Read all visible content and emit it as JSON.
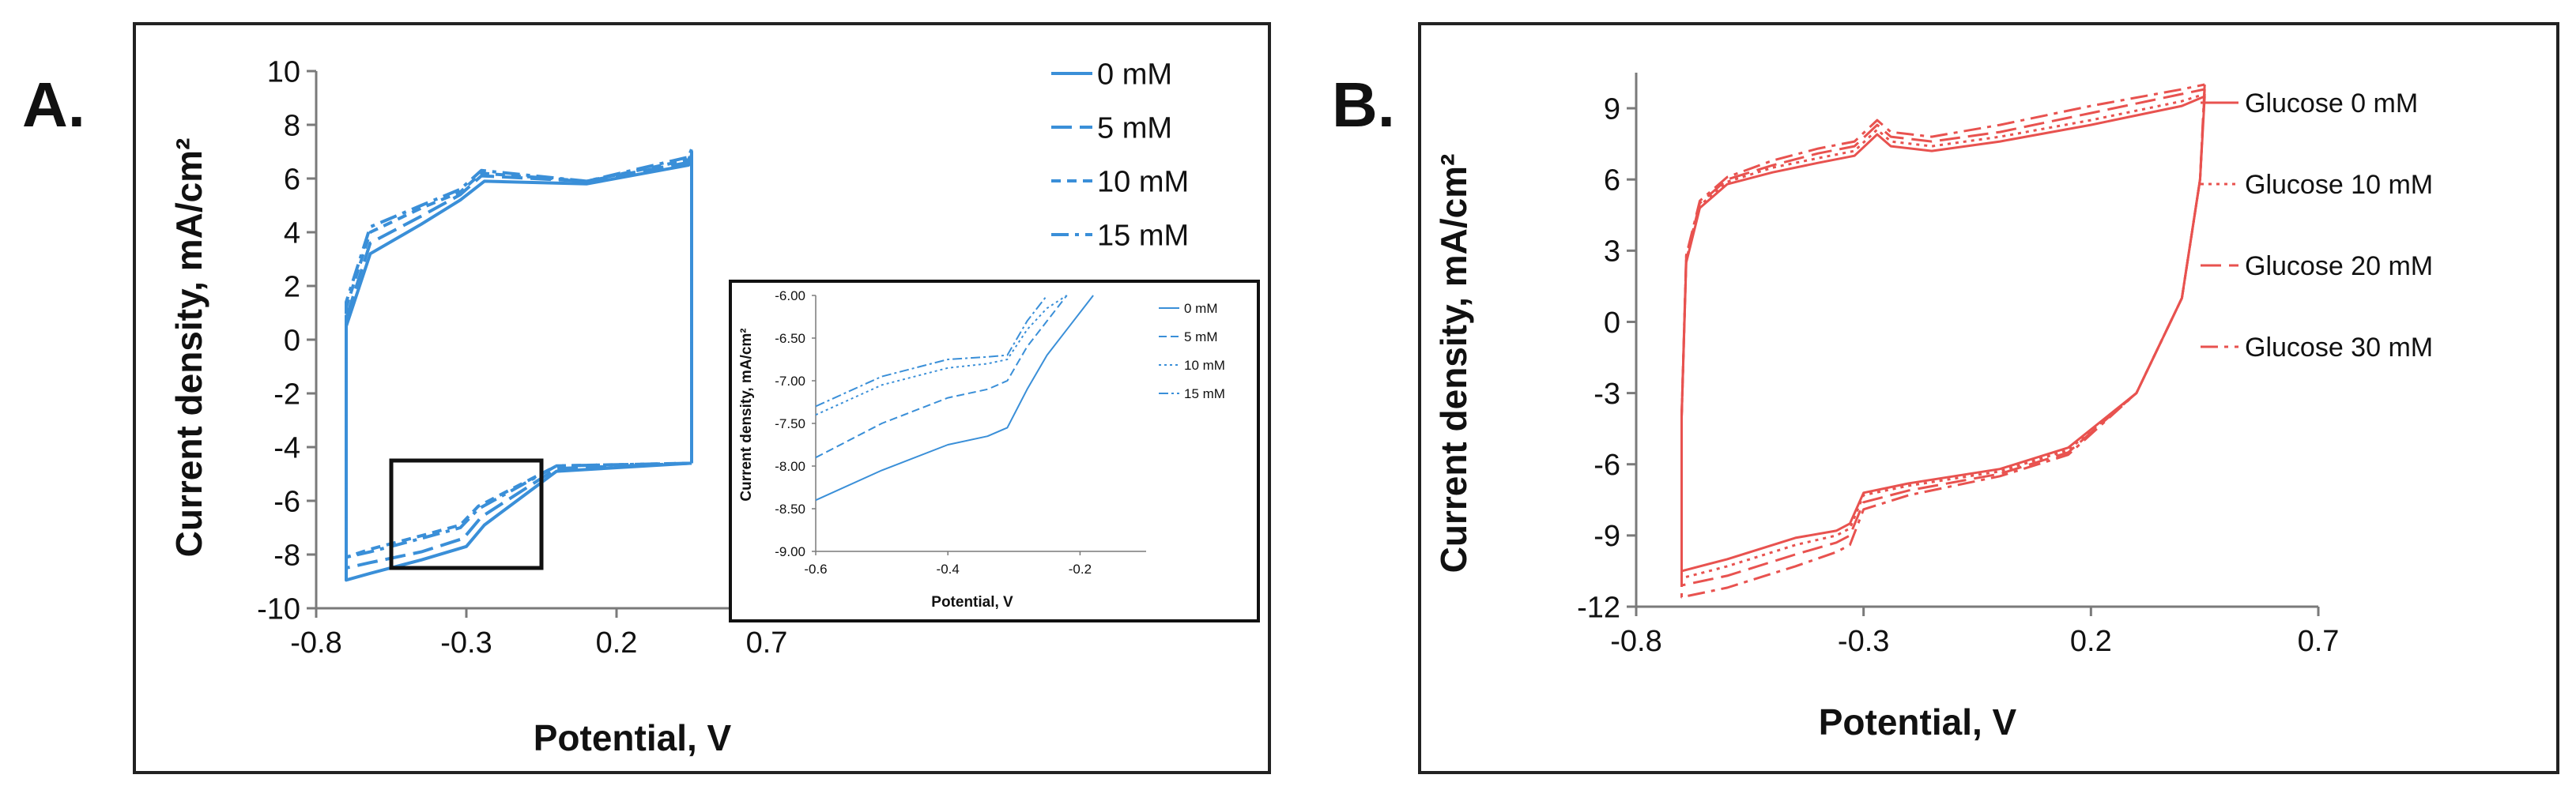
{
  "figure": {
    "colors": {
      "panelA": "#3a8fd8",
      "panelB": "#e8524f",
      "frame": "#222222",
      "text": "#111111",
      "axis": "#7a7a7a"
    }
  },
  "chart_data": [
    {
      "panel_label": "A.",
      "type": "line",
      "title": "",
      "xlabel": "Potential, V",
      "ylabel": "Current density, mA/cm²",
      "xlim": [
        -0.8,
        1.2
      ],
      "ylim": [
        -10,
        10
      ],
      "xticks": [
        "-0.8",
        "-0.3",
        "0.2",
        "0.7"
      ],
      "yticks": [
        "10",
        "8",
        "6",
        "4",
        "2",
        "0",
        "-2",
        "-4",
        "-6",
        "-8",
        "-10"
      ],
      "legend_position": "top-right",
      "series": [
        {
          "name": "0 mM",
          "dash": "solid",
          "x": [
            0.45,
            0.0,
            -0.24,
            -0.3,
            -0.45,
            -0.62,
            -0.7,
            -0.7,
            -0.62,
            -0.45,
            -0.32,
            -0.24,
            0.1,
            0.44,
            0.45,
            0.45
          ],
          "y": [
            -4.6,
            -4.9,
            -6.9,
            -7.7,
            -8.2,
            -8.7,
            -8.95,
            0.5,
            3.2,
            4.3,
            5.2,
            5.9,
            5.8,
            6.5,
            6.9,
            -4.6
          ]
        },
        {
          "name": "5 mM",
          "dash": "long-dash",
          "x": [
            0.45,
            0.0,
            -0.25,
            -0.31,
            -0.45,
            -0.62,
            -0.7,
            -0.7,
            -0.62,
            -0.45,
            -0.32,
            -0.25,
            0.1,
            0.44,
            0.45,
            0.45
          ],
          "y": [
            -4.6,
            -4.8,
            -6.6,
            -7.4,
            -7.9,
            -8.3,
            -8.5,
            0.8,
            3.6,
            4.6,
            5.4,
            6.1,
            5.9,
            6.6,
            7.0,
            -4.6
          ]
        },
        {
          "name": "10 mM",
          "dash": "short-dash",
          "x": [
            0.45,
            0.0,
            -0.26,
            -0.32,
            -0.45,
            -0.62,
            -0.7,
            -0.7,
            -0.62,
            -0.45,
            -0.32,
            -0.25,
            0.1,
            0.44,
            0.45,
            0.45
          ],
          "y": [
            -4.6,
            -4.7,
            -6.2,
            -6.9,
            -7.3,
            -7.8,
            -8.1,
            1.2,
            4.0,
            4.9,
            5.5,
            6.2,
            5.9,
            6.7,
            7.0,
            -4.6
          ]
        },
        {
          "name": "15 mM",
          "dash": "dash-dot",
          "x": [
            0.45,
            0.0,
            -0.26,
            -0.32,
            -0.45,
            -0.62,
            -0.7,
            -0.7,
            -0.62,
            -0.45,
            -0.32,
            -0.25,
            0.1,
            0.44,
            0.45,
            0.45
          ],
          "y": [
            -4.6,
            -4.7,
            -6.3,
            -7.0,
            -7.4,
            -7.9,
            -8.1,
            1.4,
            4.2,
            5.0,
            5.6,
            6.3,
            5.9,
            6.8,
            7.1,
            -4.6
          ]
        }
      ],
      "zoom_box": {
        "x": [
          -0.55,
          -0.05
        ],
        "y": [
          -8.5,
          -4.5
        ]
      },
      "inset": {
        "type": "line",
        "xlabel": "Potential, V",
        "ylabel": "Current density, mA/cm²",
        "xlim": [
          -0.6,
          -0.1
        ],
        "ylim": [
          -9.0,
          -6.0
        ],
        "xticks": [
          "-0.6",
          "-0.4",
          "-0.2"
        ],
        "yticks": [
          "-6.00",
          "-6.50",
          "-7.00",
          "-7.50",
          "-8.00",
          "-8.50",
          "-9.00"
        ],
        "series": [
          {
            "name": "0 mM",
            "x": [
              -0.6,
              -0.5,
              -0.4,
              -0.34,
              -0.31,
              -0.28,
              -0.25,
              -0.22,
              -0.18
            ],
            "y": [
              -8.4,
              -8.05,
              -7.75,
              -7.65,
              -7.55,
              -7.1,
              -6.7,
              -6.4,
              -6.0
            ]
          },
          {
            "name": "5 mM",
            "x": [
              -0.6,
              -0.5,
              -0.4,
              -0.34,
              -0.31,
              -0.28,
              -0.25,
              -0.22
            ],
            "y": [
              -7.9,
              -7.5,
              -7.2,
              -7.1,
              -7.0,
              -6.6,
              -6.3,
              -6.0
            ]
          },
          {
            "name": "10 mM",
            "x": [
              -0.6,
              -0.5,
              -0.4,
              -0.34,
              -0.31,
              -0.28,
              -0.25,
              -0.22
            ],
            "y": [
              -7.4,
              -7.05,
              -6.85,
              -6.8,
              -6.75,
              -6.4,
              -6.15,
              -6.0
            ]
          },
          {
            "name": "15 mM",
            "x": [
              -0.6,
              -0.5,
              -0.4,
              -0.34,
              -0.31,
              -0.28,
              -0.25
            ],
            "y": [
              -7.3,
              -6.95,
              -6.75,
              -6.72,
              -6.7,
              -6.3,
              -6.0
            ]
          }
        ]
      }
    },
    {
      "panel_label": "B.",
      "type": "line",
      "title": "",
      "xlabel": "Potential, V",
      "ylabel": "Current density, mA/cm²",
      "xlim": [
        -0.8,
        0.7
      ],
      "ylim": [
        -12,
        10.5
      ],
      "xticks": [
        "-0.8",
        "-0.3",
        "0.2",
        "0.7"
      ],
      "yticks": [
        "9",
        "6",
        "3",
        "0",
        "-3",
        "-6",
        "-9",
        "-12"
      ],
      "legend_position": "right",
      "series": [
        {
          "name": "Glucose 0 mM",
          "dash": "solid",
          "x": [
            0.45,
            0.44,
            0.4,
            0.3,
            0.15,
            0.0,
            -0.2,
            -0.3,
            -0.33,
            -0.36,
            -0.45,
            -0.6,
            -0.7,
            -0.7,
            -0.69,
            -0.66,
            -0.6,
            -0.5,
            -0.4,
            -0.32,
            -0.27,
            -0.24,
            -0.15,
            0.0,
            0.2,
            0.4,
            0.45,
            0.45
          ],
          "y": [
            9.5,
            6.0,
            1.0,
            -3.0,
            -5.3,
            -6.2,
            -6.8,
            -7.2,
            -8.5,
            -8.8,
            -9.1,
            -10.0,
            -10.5,
            -4.0,
            2.5,
            4.8,
            5.8,
            6.3,
            6.7,
            7.0,
            7.9,
            7.4,
            7.2,
            7.6,
            8.3,
            9.1,
            9.5,
            9.5
          ]
        },
        {
          "name": "Glucose 10 mM",
          "dash": "dotted",
          "x": [
            0.45,
            0.44,
            0.4,
            0.3,
            0.15,
            0.0,
            -0.2,
            -0.3,
            -0.33,
            -0.36,
            -0.45,
            -0.6,
            -0.7,
            -0.7,
            -0.69,
            -0.66,
            -0.6,
            -0.5,
            -0.4,
            -0.32,
            -0.27,
            -0.24,
            -0.15,
            0.0,
            0.2,
            0.4,
            0.45,
            0.45
          ],
          "y": [
            9.6,
            6.0,
            1.0,
            -3.0,
            -5.4,
            -6.3,
            -6.9,
            -7.3,
            -8.7,
            -9.0,
            -9.4,
            -10.3,
            -10.8,
            -4.0,
            2.6,
            4.9,
            5.9,
            6.5,
            6.9,
            7.2,
            8.1,
            7.6,
            7.4,
            7.8,
            8.5,
            9.3,
            9.6,
            9.6
          ]
        },
        {
          "name": "Glucose 20 mM",
          "dash": "long-dash",
          "x": [
            0.45,
            0.44,
            0.4,
            0.3,
            0.15,
            0.0,
            -0.2,
            -0.3,
            -0.33,
            -0.36,
            -0.45,
            -0.6,
            -0.7,
            -0.7,
            -0.69,
            -0.66,
            -0.6,
            -0.5,
            -0.4,
            -0.32,
            -0.27,
            -0.24,
            -0.15,
            0.0,
            0.2,
            0.4,
            0.45,
            0.45
          ],
          "y": [
            9.8,
            6.0,
            1.0,
            -3.0,
            -5.5,
            -6.4,
            -7.1,
            -7.6,
            -9.0,
            -9.3,
            -9.8,
            -10.7,
            -11.1,
            -4.0,
            2.7,
            5.0,
            6.0,
            6.6,
            7.1,
            7.4,
            8.3,
            7.8,
            7.6,
            8.0,
            8.8,
            9.6,
            9.8,
            9.8
          ]
        },
        {
          "name": "Glucose 30 mM",
          "dash": "dash-dot",
          "x": [
            0.45,
            0.44,
            0.4,
            0.3,
            0.15,
            0.0,
            -0.2,
            -0.3,
            -0.33,
            -0.36,
            -0.45,
            -0.6,
            -0.7,
            -0.7,
            -0.69,
            -0.66,
            -0.6,
            -0.5,
            -0.4,
            -0.32,
            -0.27,
            -0.24,
            -0.15,
            0.0,
            0.2,
            0.4,
            0.45,
            0.45
          ],
          "y": [
            10.0,
            6.0,
            1.0,
            -3.0,
            -5.6,
            -6.5,
            -7.3,
            -7.9,
            -9.4,
            -9.7,
            -10.3,
            -11.2,
            -11.6,
            -4.0,
            2.8,
            5.1,
            6.1,
            6.8,
            7.3,
            7.6,
            8.5,
            8.0,
            7.8,
            8.3,
            9.1,
            9.8,
            10.0,
            10.0
          ]
        }
      ]
    }
  ]
}
